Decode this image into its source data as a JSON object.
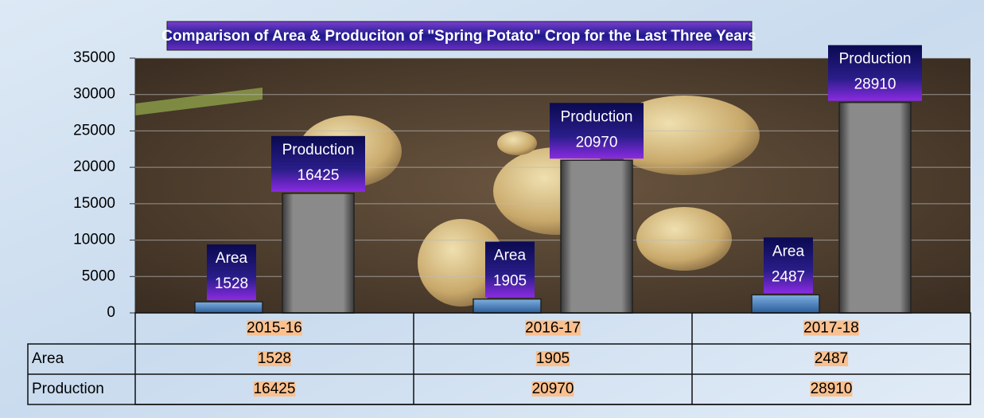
{
  "chart_data": {
    "type": "bar",
    "title": "Comparison of Area & Produciton of  \"Spring Potato\" Crop  for the Last Three Years",
    "categories": [
      "2015-16",
      "2016-17",
      "2017-18"
    ],
    "series": [
      {
        "name": "Area",
        "color": "#4f81bd",
        "values": [
          1528,
          1905,
          2487
        ]
      },
      {
        "name": "Production",
        "color": "#7f7f7f",
        "values": [
          16425,
          20970,
          28910
        ]
      }
    ],
    "ylim": [
      0,
      35000
    ],
    "yticks": [
      0,
      5000,
      10000,
      15000,
      20000,
      25000,
      30000,
      35000
    ],
    "grid": true
  }
}
